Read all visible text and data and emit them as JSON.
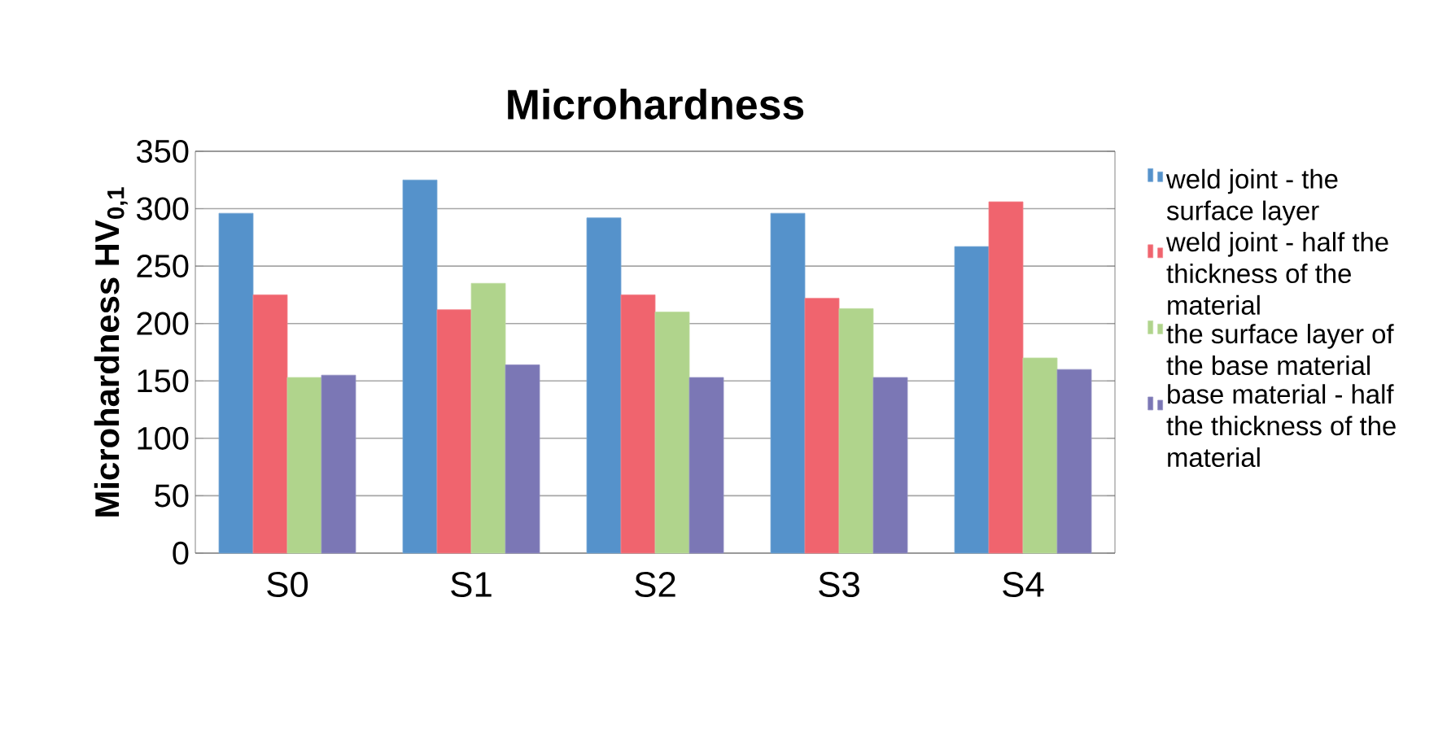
{
  "chart_data": {
    "type": "bar",
    "title": "Microhardness",
    "ylabel": "Microhardness HV$_{0,1}$",
    "categories": [
      "S0",
      "S1",
      "S2",
      "S3",
      "S4"
    ],
    "series": [
      {
        "name": "weld joint - the surface layer",
        "color": "#5592cb",
        "values": [
          296,
          325,
          292,
          296,
          267
        ]
      },
      {
        "name": "weld joint - half the thickness of the material",
        "color": "#f0646e",
        "values": [
          225,
          212,
          225,
          222,
          306
        ]
      },
      {
        "name": "the surface layer of the base material",
        "color": "#b0d48c",
        "values": [
          153,
          235,
          210,
          213,
          170
        ]
      },
      {
        "name": "base material - half the thickness of the material",
        "color": "#7b77b5",
        "values": [
          155,
          164,
          153,
          153,
          160
        ]
      }
    ],
    "ylim": [
      0,
      350
    ],
    "yticks": [
      0,
      50,
      100,
      150,
      200,
      250,
      300,
      350
    ],
    "grid": "y",
    "legend": "right"
  }
}
